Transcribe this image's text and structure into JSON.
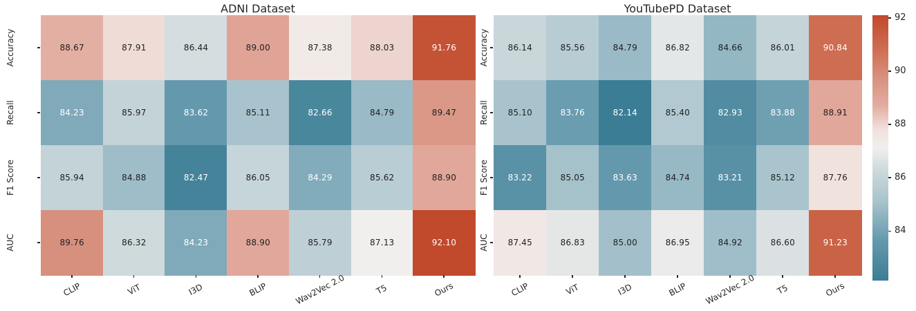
{
  "chart_data": [
    {
      "type": "heatmap",
      "title": "ADNI Dataset",
      "rows": [
        "Accuracy",
        "Recall",
        "F1 Score",
        "AUC"
      ],
      "columns": [
        "CLIP",
        "ViT",
        "I3D",
        "BLIP",
        "Wav2Vec 2.0",
        "T5",
        "Ours"
      ],
      "values": [
        [
          88.67,
          87.91,
          86.44,
          89.0,
          87.38,
          88.03,
          91.76
        ],
        [
          84.23,
          85.97,
          83.62,
          85.11,
          82.66,
          84.79,
          89.47
        ],
        [
          85.94,
          84.88,
          82.47,
          86.05,
          84.29,
          85.62,
          88.9
        ],
        [
          89.76,
          86.32,
          84.23,
          88.9,
          85.79,
          87.13,
          92.1
        ]
      ],
      "value_format": "2dp",
      "legend_position": "shared-right-colorbar"
    },
    {
      "type": "heatmap",
      "title": "YouTubePD Dataset",
      "rows": [
        "Accuracy",
        "Recall",
        "F1 Score",
        "AUC"
      ],
      "columns": [
        "CLIP",
        "ViT",
        "I3D",
        "BLIP",
        "Wav2Vec 2.0",
        "T5",
        "Ours"
      ],
      "values": [
        [
          86.14,
          85.56,
          84.79,
          86.82,
          84.66,
          86.01,
          90.84
        ],
        [
          85.1,
          83.76,
          82.14,
          85.4,
          82.93,
          83.88,
          88.91
        ],
        [
          83.22,
          85.05,
          83.63,
          84.74,
          83.21,
          85.12,
          87.76
        ],
        [
          87.45,
          86.83,
          85.0,
          86.95,
          84.92,
          86.6,
          91.23
        ]
      ],
      "value_format": "2dp",
      "legend_position": "shared-right-colorbar"
    }
  ],
  "colorbar": {
    "orientation": "vertical",
    "vmin": 82.14,
    "vmax": 92.1,
    "ticks": [
      92,
      90,
      88,
      86,
      84
    ]
  },
  "colors": {
    "background": "#ffffff",
    "axis_text": "#262626",
    "annotation_dark": "#1f1f1f",
    "annotation_light": "#ffffff",
    "colormap_stops": [
      {
        "t": 0.0,
        "hex": "#3b7d95"
      },
      {
        "t": 0.15,
        "hex": "#6499ad"
      },
      {
        "t": 0.3,
        "hex": "#a9c4cd"
      },
      {
        "t": 0.42,
        "hex": "#cfdadd"
      },
      {
        "t": 0.5,
        "hex": "#f1efed"
      },
      {
        "t": 0.57,
        "hex": "#f0e1dc"
      },
      {
        "t": 0.66,
        "hex": "#e3aca0"
      },
      {
        "t": 0.77,
        "hex": "#d88f7c"
      },
      {
        "t": 0.88,
        "hex": "#cd6b4f"
      },
      {
        "t": 1.0,
        "hex": "#c1492c"
      }
    ],
    "light_text_low_threshold": 0.23,
    "light_text_high_threshold": 0.82
  }
}
